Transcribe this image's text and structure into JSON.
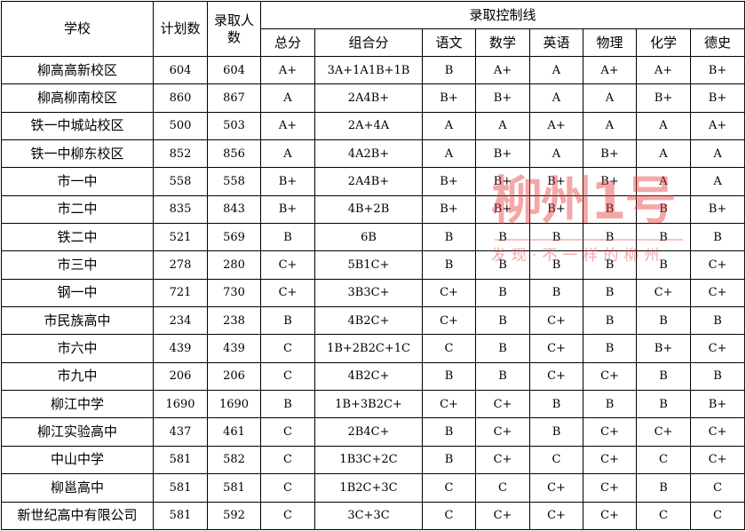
{
  "header": {
    "school": "学校",
    "plan": "计划数",
    "admitted": "录取人数",
    "control_line": "录取控制线",
    "sub": [
      "总分",
      "组合分",
      "语文",
      "数学",
      "英语",
      "物理",
      "化学",
      "德史"
    ]
  },
  "rows": [
    [
      "柳高高新校区",
      "604",
      "604",
      "A+",
      "3A+1A1B+1B",
      "B",
      "A+",
      "A",
      "A+",
      "A+",
      "B+"
    ],
    [
      "柳高柳南校区",
      "860",
      "867",
      "A",
      "2A4B+",
      "B+",
      "B+",
      "A",
      "A",
      "B+",
      "B+"
    ],
    [
      "铁一中城站校区",
      "500",
      "503",
      "A+",
      "2A+4A",
      "A",
      "A",
      "A+",
      "A",
      "A",
      "A+"
    ],
    [
      "铁一中柳东校区",
      "852",
      "856",
      "A",
      "4A2B+",
      "A",
      "B+",
      "A",
      "B+",
      "A",
      "A"
    ],
    [
      "市一中",
      "558",
      "558",
      "B+",
      "2A4B+",
      "B+",
      "B+",
      "B+",
      "B+",
      "A",
      "A"
    ],
    [
      "市二中",
      "835",
      "843",
      "B+",
      "4B+2B",
      "B+",
      "B+",
      "B+",
      "B",
      "B",
      "B+"
    ],
    [
      "铁二中",
      "521",
      "569",
      "B",
      "6B",
      "B",
      "B",
      "B",
      "B",
      "B",
      "B"
    ],
    [
      "市三中",
      "278",
      "280",
      "C+",
      "5B1C+",
      "B",
      "B",
      "B",
      "B",
      "B",
      "C+"
    ],
    [
      "钢一中",
      "721",
      "730",
      "C+",
      "3B3C+",
      "C+",
      "B",
      "B",
      "B",
      "C+",
      "C+"
    ],
    [
      "市民族高中",
      "234",
      "238",
      "B",
      "4B2C+",
      "C+",
      "B",
      "C+",
      "B",
      "B",
      "B"
    ],
    [
      "市六中",
      "439",
      "439",
      "C",
      "1B+2B2C+1C",
      "C",
      "B",
      "C+",
      "B",
      "B+",
      "C+"
    ],
    [
      "市九中",
      "206",
      "206",
      "C",
      "4B2C+",
      "B",
      "B",
      "C+",
      "C+",
      "B",
      "B"
    ],
    [
      "柳江中学",
      "1690",
      "1690",
      "B",
      "1B+3B2C+",
      "C+",
      "C+",
      "B",
      "B",
      "B",
      "B+"
    ],
    [
      "柳江实验高中",
      "437",
      "461",
      "C",
      "2B4C+",
      "B",
      "C+",
      "B",
      "C+",
      "C+",
      "C+"
    ],
    [
      "中山中学",
      "581",
      "582",
      "C",
      "1B3C+2C",
      "B",
      "C+",
      "C",
      "C+",
      "C",
      "C+"
    ],
    [
      "柳邕高中",
      "581",
      "581",
      "C",
      "1B2C+3C",
      "C",
      "C",
      "C+",
      "C+",
      "B",
      "C"
    ],
    [
      "新世纪高中有限公司",
      "581",
      "592",
      "C",
      "3C+3C",
      "C",
      "C+",
      "C+",
      "C+",
      "C",
      "C"
    ]
  ],
  "watermark": {
    "logo": "柳州1号",
    "slogan": "发现·不一样的柳州",
    "color": "#e63c3c"
  }
}
